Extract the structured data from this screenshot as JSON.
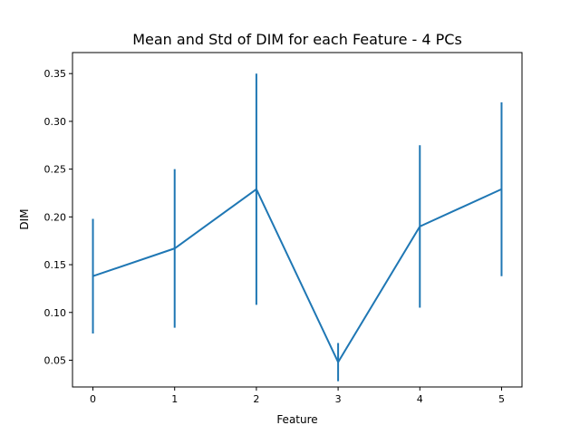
{
  "chart_data": {
    "type": "line",
    "title": "Mean and Std of DIM for each Feature - 4 PCs",
    "xlabel": "Feature",
    "ylabel": "DIM",
    "x": [
      0,
      1,
      2,
      3,
      4,
      5
    ],
    "series": [
      {
        "values": [
          0.138,
          0.167,
          0.229,
          0.048,
          0.19,
          0.229
        ],
        "error": [
          0.06,
          0.083,
          0.121,
          0.02,
          0.085,
          0.091
        ]
      }
    ],
    "xticks": [
      "0",
      "1",
      "2",
      "3",
      "4",
      "5"
    ],
    "yticks": [
      "0.05",
      "0.10",
      "0.15",
      "0.20",
      "0.25",
      "0.30",
      "0.35"
    ],
    "ytick_values": [
      0.05,
      0.1,
      0.15,
      0.2,
      0.25,
      0.3,
      0.35
    ],
    "xlim": [
      -0.25,
      5.25
    ],
    "ylim": [
      0.022,
      0.372
    ],
    "grid": false,
    "colors": {
      "series": "#1f77b4"
    }
  }
}
